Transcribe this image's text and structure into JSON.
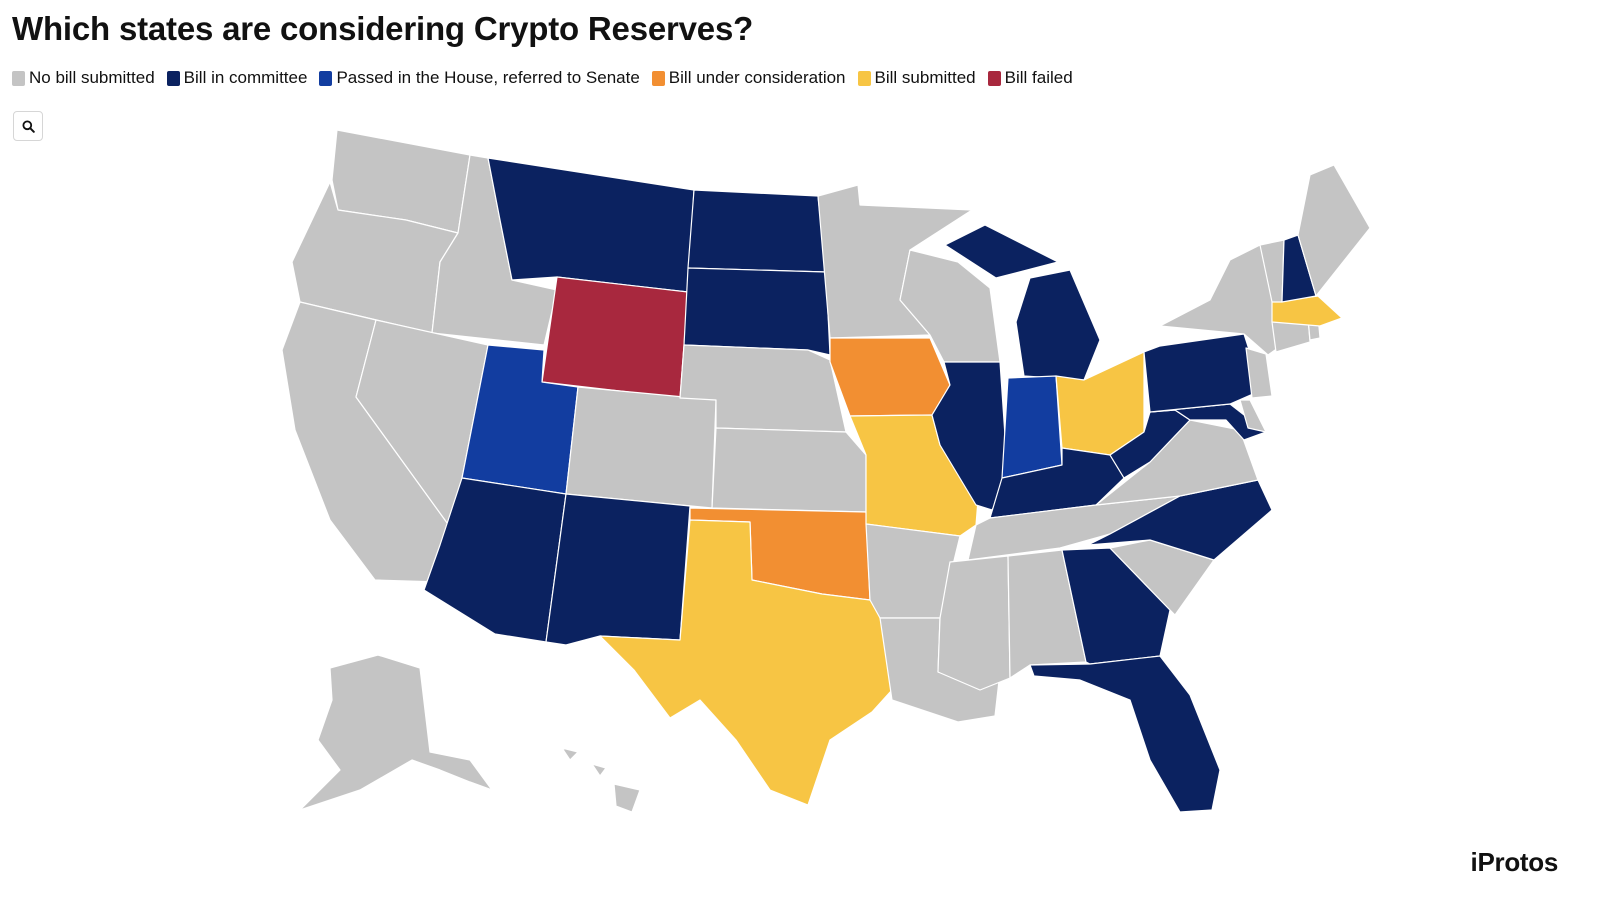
{
  "header": {
    "title": "Which states are considering Crypto Reserves?"
  },
  "legend": [
    {
      "key": "none",
      "label": "No bill submitted",
      "color": "#c4c4c4"
    },
    {
      "key": "committee",
      "label": "Bill in committee",
      "color": "#0b2260"
    },
    {
      "key": "passed",
      "label": "Passed in the House, referred to Senate",
      "color": "#123da0"
    },
    {
      "key": "consideration",
      "label": "Bill under consideration",
      "color": "#f28f32"
    },
    {
      "key": "submitted",
      "label": "Bill submitted",
      "color": "#f7c544"
    },
    {
      "key": "failed",
      "label": "Bill failed",
      "color": "#a8283e"
    }
  ],
  "controls": {
    "search_icon": "search-icon"
  },
  "map": {
    "states": [
      {
        "abbr": "WA",
        "status": "none"
      },
      {
        "abbr": "OR",
        "status": "none"
      },
      {
        "abbr": "CA",
        "status": "none"
      },
      {
        "abbr": "ID",
        "status": "none"
      },
      {
        "abbr": "NV",
        "status": "none"
      },
      {
        "abbr": "MT",
        "status": "committee"
      },
      {
        "abbr": "WY",
        "status": "failed"
      },
      {
        "abbr": "UT",
        "status": "passed"
      },
      {
        "abbr": "AZ",
        "status": "committee"
      },
      {
        "abbr": "CO",
        "status": "none"
      },
      {
        "abbr": "NM",
        "status": "committee"
      },
      {
        "abbr": "ND",
        "status": "committee"
      },
      {
        "abbr": "SD",
        "status": "committee"
      },
      {
        "abbr": "NE",
        "status": "none"
      },
      {
        "abbr": "KS",
        "status": "none"
      },
      {
        "abbr": "OK",
        "status": "consideration"
      },
      {
        "abbr": "TX",
        "status": "submitted"
      },
      {
        "abbr": "MN",
        "status": "none"
      },
      {
        "abbr": "IA",
        "status": "consideration"
      },
      {
        "abbr": "MO",
        "status": "submitted"
      },
      {
        "abbr": "AR",
        "status": "none"
      },
      {
        "abbr": "LA",
        "status": "none"
      },
      {
        "abbr": "WI",
        "status": "none"
      },
      {
        "abbr": "IL",
        "status": "committee"
      },
      {
        "abbr": "MI",
        "status": "committee"
      },
      {
        "abbr": "IN",
        "status": "passed"
      },
      {
        "abbr": "OH",
        "status": "submitted"
      },
      {
        "abbr": "KY",
        "status": "committee"
      },
      {
        "abbr": "TN",
        "status": "none"
      },
      {
        "abbr": "MS",
        "status": "none"
      },
      {
        "abbr": "AL",
        "status": "none"
      },
      {
        "abbr": "GA",
        "status": "committee"
      },
      {
        "abbr": "FL",
        "status": "committee"
      },
      {
        "abbr": "SC",
        "status": "none"
      },
      {
        "abbr": "NC",
        "status": "committee"
      },
      {
        "abbr": "VA",
        "status": "none"
      },
      {
        "abbr": "WV",
        "status": "committee"
      },
      {
        "abbr": "MD",
        "status": "committee"
      },
      {
        "abbr": "DE",
        "status": "none"
      },
      {
        "abbr": "PA",
        "status": "committee"
      },
      {
        "abbr": "NJ",
        "status": "none"
      },
      {
        "abbr": "NY",
        "status": "none"
      },
      {
        "abbr": "CT",
        "status": "none"
      },
      {
        "abbr": "RI",
        "status": "none"
      },
      {
        "abbr": "MA",
        "status": "submitted"
      },
      {
        "abbr": "VT",
        "status": "none"
      },
      {
        "abbr": "NH",
        "status": "committee"
      },
      {
        "abbr": "ME",
        "status": "none"
      },
      {
        "abbr": "AK",
        "status": "none"
      },
      {
        "abbr": "HI",
        "status": "none"
      }
    ]
  },
  "footer": {
    "brand": "iProtos"
  }
}
